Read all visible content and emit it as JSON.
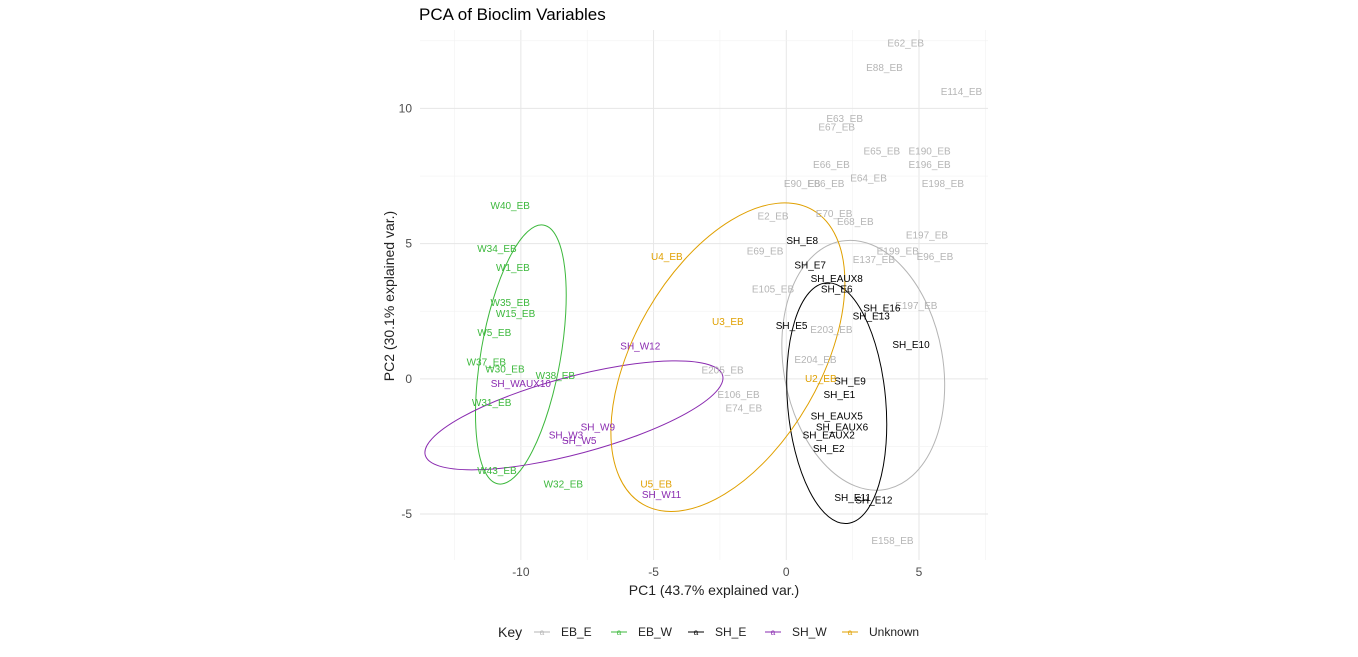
{
  "chart_data": {
    "type": "scatter",
    "title": "PCA of Bioclim Variables",
    "xlabel": "PC1 (43.7% explained var.)",
    "ylabel": "PC2 (30.1% explained var.)",
    "xlim": [
      -13.8,
      7.6
    ],
    "ylim": [
      -6.7,
      12.9
    ],
    "xticks": [
      -10,
      -5,
      0,
      5
    ],
    "yticks": [
      -5,
      0,
      5,
      10
    ],
    "grid": true,
    "legend": {
      "title": "Key",
      "position": "bottom",
      "entries": [
        "EB_E",
        "EB_W",
        "SH_E",
        "SH_W",
        "Unknown"
      ]
    },
    "colors": {
      "EB_E": "#b5b5b5",
      "EB_W": "#3cb83c",
      "SH_E": "#000000",
      "SH_W": "#8a2bb0",
      "Unknown": "#e0a000"
    },
    "ellipses": [
      {
        "group": "EB_E",
        "cx": 2.9,
        "cy": 0.5,
        "rx": 4.75,
        "ry": 3.0,
        "rotation_deg": -100
      },
      {
        "group": "EB_W",
        "cx": -10.0,
        "cy": 0.9,
        "rx": 4.95,
        "ry": 1.5,
        "rotation_deg": -80
      },
      {
        "group": "SH_E",
        "cx": 1.9,
        "cy": -0.9,
        "rx": 4.55,
        "ry": 1.85,
        "rotation_deg": -95
      },
      {
        "group": "SH_W",
        "cx": -8.0,
        "cy": -1.35,
        "rx": 5.8,
        "ry": 1.45,
        "rotation_deg": -15
      },
      {
        "group": "Unknown",
        "cx": -2.2,
        "cy": 0.8,
        "rx": 6.4,
        "ry": 3.5,
        "rotation_deg": -60
      }
    ],
    "series": [
      {
        "name": "EB_E",
        "points": [
          {
            "label": "E62_EB",
            "x": 4.5,
            "y": 12.4
          },
          {
            "label": "E88_EB",
            "x": 3.7,
            "y": 11.5
          },
          {
            "label": "E114_EB",
            "x": 6.6,
            "y": 10.6
          },
          {
            "label": "E63_EB",
            "x": 2.2,
            "y": 9.6
          },
          {
            "label": "E67_EB",
            "x": 1.9,
            "y": 9.3
          },
          {
            "label": "E65_EB",
            "x": 3.6,
            "y": 8.4
          },
          {
            "label": "E190_EB",
            "x": 5.4,
            "y": 8.4
          },
          {
            "label": "E66_EB",
            "x": 1.7,
            "y": 7.9
          },
          {
            "label": "E196_EB",
            "x": 5.4,
            "y": 7.9
          },
          {
            "label": "E64_EB",
            "x": 3.1,
            "y": 7.4
          },
          {
            "label": "E198_EB",
            "x": 5.9,
            "y": 7.2
          },
          {
            "label": "E90_EB",
            "x": 0.6,
            "y": 7.2
          },
          {
            "label": "E86_EB",
            "x": 1.5,
            "y": 7.2
          },
          {
            "label": "E2_EB",
            "x": -0.5,
            "y": 6.0
          },
          {
            "label": "E70_EB",
            "x": 1.8,
            "y": 6.1
          },
          {
            "label": "E68_EB",
            "x": 2.6,
            "y": 5.8
          },
          {
            "label": "E197_EB",
            "x": 5.3,
            "y": 5.3
          },
          {
            "label": "E199_EB",
            "x": 4.2,
            "y": 4.7
          },
          {
            "label": "E96_EB",
            "x": 5.6,
            "y": 4.5
          },
          {
            "label": "E69_EB",
            "x": -0.8,
            "y": 4.7
          },
          {
            "label": "E137_EB",
            "x": 3.3,
            "y": 4.4
          },
          {
            "label": "E105_EB",
            "x": -0.5,
            "y": 3.3
          },
          {
            "label": "E197_EB",
            "x": 4.9,
            "y": 2.7
          },
          {
            "label": "E203_EB",
            "x": 1.7,
            "y": 1.8
          },
          {
            "label": "E204_EB",
            "x": 1.1,
            "y": 0.7
          },
          {
            "label": "E205_EB",
            "x": -2.4,
            "y": 0.3
          },
          {
            "label": "E106_EB",
            "x": -1.8,
            "y": -0.6
          },
          {
            "label": "E74_EB",
            "x": -1.6,
            "y": -1.1
          },
          {
            "label": "E158_EB",
            "x": 4.0,
            "y": -6.0
          }
        ]
      },
      {
        "name": "EB_W",
        "points": [
          {
            "label": "W40_EB",
            "x": -10.4,
            "y": 6.4
          },
          {
            "label": "W34_EB",
            "x": -10.9,
            "y": 4.8
          },
          {
            "label": "W1_EB",
            "x": -10.3,
            "y": 4.1
          },
          {
            "label": "W35_EB",
            "x": -10.4,
            "y": 2.8
          },
          {
            "label": "W15_EB",
            "x": -10.2,
            "y": 2.4
          },
          {
            "label": "W5_EB",
            "x": -11.0,
            "y": 1.7
          },
          {
            "label": "W37_EB",
            "x": -11.3,
            "y": 0.6
          },
          {
            "label": "W30_EB",
            "x": -10.6,
            "y": 0.35
          },
          {
            "label": "W38_EB",
            "x": -8.7,
            "y": 0.1
          },
          {
            "label": "W31_EB",
            "x": -11.1,
            "y": -0.9
          },
          {
            "label": "W32_EB",
            "x": -8.4,
            "y": -3.9
          },
          {
            "label": "W43_EB",
            "x": -10.9,
            "y": -3.4
          }
        ]
      },
      {
        "name": "SH_E",
        "points": [
          {
            "label": "SH_E8",
            "x": 0.6,
            "y": 5.1
          },
          {
            "label": "SH_E7",
            "x": 0.9,
            "y": 4.2
          },
          {
            "label": "SH_EAUX8",
            "x": 1.9,
            "y": 3.7
          },
          {
            "label": "SH_E6",
            "x": 1.9,
            "y": 3.3
          },
          {
            "label": "SH_E16",
            "x": 3.6,
            "y": 2.6
          },
          {
            "label": "SH_E13",
            "x": 3.2,
            "y": 2.3
          },
          {
            "label": "SH_E5",
            "x": 0.2,
            "y": 1.95
          },
          {
            "label": "SH_E10",
            "x": 4.7,
            "y": 1.25
          },
          {
            "label": "SH_E9",
            "x": 2.4,
            "y": -0.1
          },
          {
            "label": "SH_E1",
            "x": 2.0,
            "y": -0.6
          },
          {
            "label": "SH_EAUX5",
            "x": 1.9,
            "y": -1.4
          },
          {
            "label": "SH_EAUX6",
            "x": 2.1,
            "y": -1.8
          },
          {
            "label": "SH_EAUX2",
            "x": 1.6,
            "y": -2.1
          },
          {
            "label": "SH_E2",
            "x": 1.6,
            "y": -2.6
          },
          {
            "label": "SH_E11",
            "x": 2.5,
            "y": -4.4
          },
          {
            "label": "SH_E12",
            "x": 3.3,
            "y": -4.5
          }
        ]
      },
      {
        "name": "SH_W",
        "points": [
          {
            "label": "SH_W12",
            "x": -5.5,
            "y": 1.2
          },
          {
            "label": "SH_W11",
            "x": -4.7,
            "y": -4.3
          },
          {
            "label": "SH_W5",
            "x": -7.8,
            "y": -2.3
          },
          {
            "label": "SH_W3",
            "x": -8.3,
            "y": -2.1
          },
          {
            "label": "SH_W9",
            "x": -7.1,
            "y": -1.8
          },
          {
            "label": "SH_WAUX10",
            "x": -10.0,
            "y": -0.2
          }
        ]
      },
      {
        "name": "Unknown",
        "points": [
          {
            "label": "U4_EB",
            "x": -4.5,
            "y": 4.5
          },
          {
            "label": "U3_EB",
            "x": -2.2,
            "y": 2.1
          },
          {
            "label": "U2_EB",
            "x": 1.3,
            "y": 0.0
          },
          {
            "label": "U5_EB",
            "x": -4.9,
            "y": -3.9
          }
        ]
      }
    ]
  }
}
